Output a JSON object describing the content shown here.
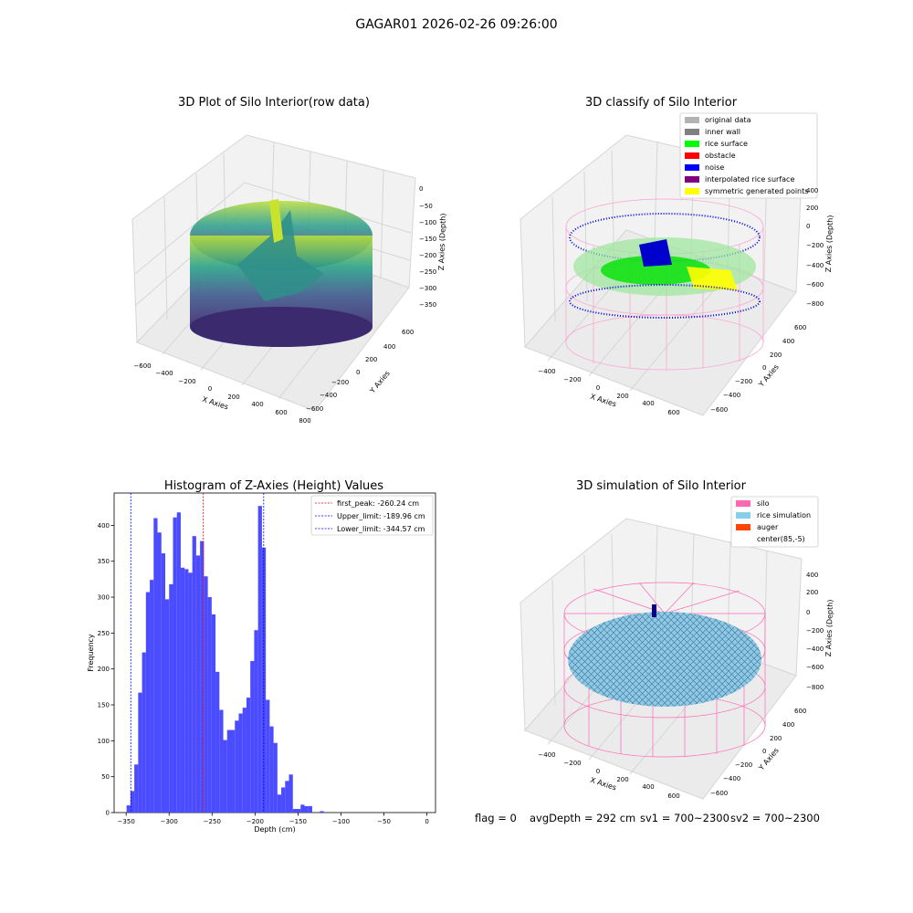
{
  "figure": {
    "suptitle": "GAGAR01 2026-02-26 09:26:00",
    "footer": {
      "flag": "flag = 0",
      "avg_depth": "avgDepth = 292 cm",
      "sv1": "sv1 = 700~2300",
      "sv2": "sv2 = 700~2300"
    }
  },
  "panels": {
    "raw": {
      "title": "3D Plot of Silo Interior(row data)",
      "xlabel": "X Axies",
      "ylabel": "Y Axies",
      "zlabel": "Z Axies (Depth)",
      "xticks": [
        "−600",
        "−400",
        "−200",
        "0",
        "200",
        "400",
        "600",
        "800"
      ],
      "yticks": [
        "600",
        "400",
        "200",
        "0",
        "−200",
        "−400",
        "−600"
      ],
      "zticks": [
        "0",
        "−50",
        "−100",
        "−150",
        "−200",
        "−250",
        "−300",
        "−350"
      ]
    },
    "classify": {
      "title": "3D classify of Silo Interior",
      "xlabel": "X Axies",
      "ylabel": "Y Axies",
      "zlabel": "Z Axies (Depth)",
      "xticks": [
        "−400",
        "−200",
        "0",
        "200",
        "400",
        "600"
      ],
      "yticks": [
        "600",
        "400",
        "200",
        "0",
        "−200",
        "−400",
        "−600"
      ],
      "zticks": [
        "400",
        "200",
        "0",
        "−200",
        "−400",
        "−600",
        "−800"
      ],
      "legend": [
        {
          "label": "original data",
          "color": "#b3b3b3"
        },
        {
          "label": "inner wall",
          "color": "#808080"
        },
        {
          "label": "rice surface",
          "color": "#00ff00"
        },
        {
          "label": "obstacle",
          "color": "#ff0000"
        },
        {
          "label": "noise",
          "color": "#0000ff"
        },
        {
          "label": "interpolated rice surface",
          "color": "#800080"
        },
        {
          "label": "symmetric generated points",
          "color": "#ffff00"
        }
      ]
    },
    "simulation": {
      "title": "3D simulation of Silo Interior",
      "xlabel": "X Axies",
      "ylabel": "Y Axies",
      "zlabel": "Z Axies (Depth)",
      "xticks": [
        "−400",
        "−200",
        "0",
        "200",
        "400",
        "600"
      ],
      "yticks": [
        "600",
        "400",
        "200",
        "0",
        "−200",
        "−400",
        "−600"
      ],
      "zticks": [
        "400",
        "200",
        "0",
        "−200",
        "−400",
        "−600",
        "−800"
      ],
      "legend": [
        {
          "label": "silo",
          "color": "#ff69b4"
        },
        {
          "label": "rice simulation",
          "color": "#87ceeb"
        },
        {
          "label": "auger",
          "color": "#ff4500"
        },
        {
          "label": "center(85,-5)",
          "color": ""
        }
      ]
    }
  },
  "chart_data": {
    "type": "bar",
    "title": "Histogram of Z-Axies (Height) Values",
    "xlabel": "Depth (cm)",
    "ylabel": "Frequency",
    "xlim": [
      -364,
      10
    ],
    "ylim": [
      0,
      445
    ],
    "xticks": [
      -350,
      -300,
      -250,
      -200,
      -150,
      -100,
      -50,
      0
    ],
    "yticks": [
      0,
      50,
      100,
      150,
      200,
      250,
      300,
      350,
      400
    ],
    "bar_color": "#4b4bff",
    "bins": [
      {
        "x0": -349.5,
        "x1": -345.0,
        "count": 10
      },
      {
        "x0": -345.0,
        "x1": -340.5,
        "count": 30
      },
      {
        "x0": -340.5,
        "x1": -336.0,
        "count": 67
      },
      {
        "x0": -336.0,
        "x1": -331.5,
        "count": 167
      },
      {
        "x0": -331.5,
        "x1": -327.0,
        "count": 223
      },
      {
        "x0": -327.0,
        "x1": -322.5,
        "count": 307
      },
      {
        "x0": -322.5,
        "x1": -318.0,
        "count": 324
      },
      {
        "x0": -318.0,
        "x1": -313.5,
        "count": 410
      },
      {
        "x0": -313.5,
        "x1": -309.0,
        "count": 390
      },
      {
        "x0": -309.0,
        "x1": -304.5,
        "count": 361
      },
      {
        "x0": -304.5,
        "x1": -300.0,
        "count": 297
      },
      {
        "x0": -300.0,
        "x1": -295.5,
        "count": 318
      },
      {
        "x0": -295.5,
        "x1": -291.0,
        "count": 411
      },
      {
        "x0": -291.0,
        "x1": -286.5,
        "count": 418
      },
      {
        "x0": -286.5,
        "x1": -282.0,
        "count": 341
      },
      {
        "x0": -282.0,
        "x1": -277.5,
        "count": 339
      },
      {
        "x0": -277.5,
        "x1": -273.0,
        "count": 334
      },
      {
        "x0": -273.0,
        "x1": -268.5,
        "count": 385
      },
      {
        "x0": -268.5,
        "x1": -264.0,
        "count": 358
      },
      {
        "x0": -264.0,
        "x1": -259.5,
        "count": 378
      },
      {
        "x0": -259.5,
        "x1": -255.0,
        "count": 329
      },
      {
        "x0": -255.0,
        "x1": -250.5,
        "count": 300
      },
      {
        "x0": -250.5,
        "x1": -246.0,
        "count": 276
      },
      {
        "x0": -246.0,
        "x1": -241.5,
        "count": 196
      },
      {
        "x0": -241.5,
        "x1": -237.0,
        "count": 143
      },
      {
        "x0": -237.0,
        "x1": -232.5,
        "count": 101
      },
      {
        "x0": -232.5,
        "x1": -228.0,
        "count": 115
      },
      {
        "x0": -228.0,
        "x1": -223.5,
        "count": 115
      },
      {
        "x0": -223.5,
        "x1": -219.0,
        "count": 128
      },
      {
        "x0": -219.0,
        "x1": -214.5,
        "count": 138
      },
      {
        "x0": -214.5,
        "x1": -210.0,
        "count": 146
      },
      {
        "x0": -210.0,
        "x1": -205.5,
        "count": 160
      },
      {
        "x0": -205.5,
        "x1": -201.0,
        "count": 211
      },
      {
        "x0": -201.0,
        "x1": -196.5,
        "count": 254
      },
      {
        "x0": -196.5,
        "x1": -192.0,
        "count": 427
      },
      {
        "x0": -192.0,
        "x1": -187.5,
        "count": 369
      },
      {
        "x0": -187.5,
        "x1": -183.0,
        "count": 157
      },
      {
        "x0": -183.0,
        "x1": -178.5,
        "count": 120
      },
      {
        "x0": -178.5,
        "x1": -174.0,
        "count": 97
      },
      {
        "x0": -174.0,
        "x1": -169.5,
        "count": 25
      },
      {
        "x0": -169.5,
        "x1": -165.0,
        "count": 35
      },
      {
        "x0": -165.0,
        "x1": -160.5,
        "count": 44
      },
      {
        "x0": -160.5,
        "x1": -156.0,
        "count": 53
      },
      {
        "x0": -156.0,
        "x1": -151.5,
        "count": 5
      },
      {
        "x0": -151.5,
        "x1": -147.0,
        "count": 5
      },
      {
        "x0": -147.0,
        "x1": -142.5,
        "count": 11
      },
      {
        "x0": -142.5,
        "x1": -138.0,
        "count": 9
      },
      {
        "x0": -138.0,
        "x1": -133.5,
        "count": 9
      },
      {
        "x0": -133.5,
        "x1": -129.0,
        "count": 0
      },
      {
        "x0": -129.0,
        "x1": -124.5,
        "count": 0
      },
      {
        "x0": -124.5,
        "x1": -120.0,
        "count": 2
      }
    ],
    "vlines": [
      {
        "x": -260.24,
        "color": "#ff0000",
        "label": "first_peak: -260.24 cm"
      },
      {
        "x": -189.96,
        "color": "#0000ff",
        "label": "Upper_limit: -189.96 cm"
      },
      {
        "x": -344.57,
        "color": "#0000ff",
        "label": "Lower_limit: -344.57 cm"
      }
    ],
    "legend_position": "top-right"
  }
}
